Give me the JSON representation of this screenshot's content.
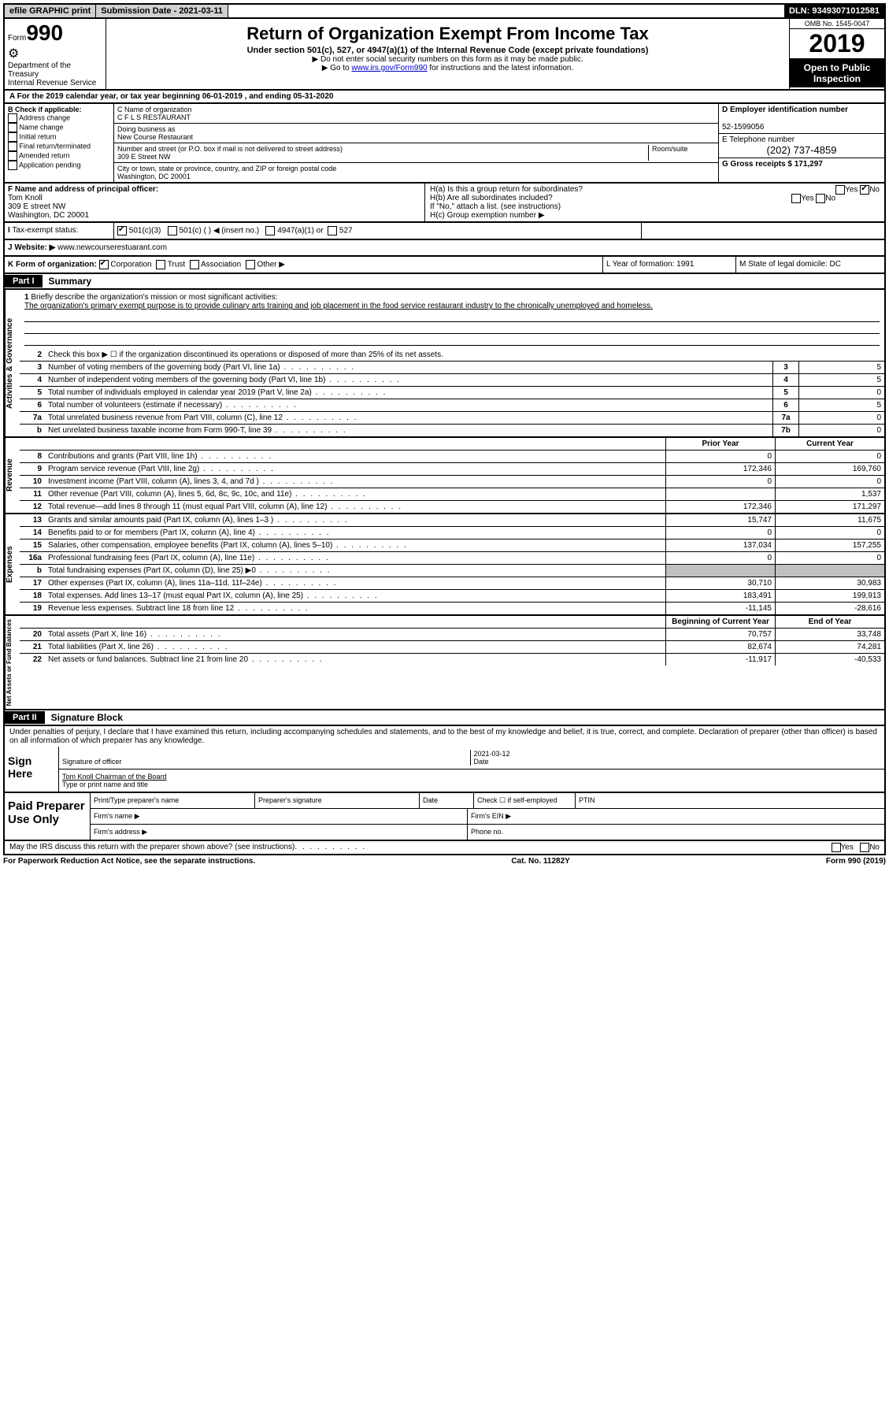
{
  "header": {
    "efile": "efile GRAPHIC print",
    "submission": "Submission Date - 2021-03-11",
    "dln": "DLN: 93493071012581"
  },
  "form": {
    "form_label": "Form",
    "form_num": "990",
    "title": "Return of Organization Exempt From Income Tax",
    "subtitle": "Under section 501(c), 527, or 4947(a)(1) of the Internal Revenue Code (except private foundations)",
    "note1": "Do not enter social security numbers on this form as it may be made public.",
    "note2_pre": "Go to ",
    "note2_link": "www.irs.gov/Form990",
    "note2_post": " for instructions and the latest information.",
    "dept": "Department of the Treasury",
    "irs": "Internal Revenue Service",
    "omb": "OMB No. 1545-0047",
    "year": "2019",
    "open": "Open to Public Inspection"
  },
  "rowA": "For the 2019 calendar year, or tax year beginning 06-01-2019     , and ending 05-31-2020",
  "boxB": {
    "label": "B Check if applicable:",
    "opts": [
      "Address change",
      "Name change",
      "Initial return",
      "Final return/terminated",
      "Amended return",
      "Application pending"
    ]
  },
  "boxC": {
    "name_label": "C Name of organization",
    "name": "C F L S RESTAURANT",
    "dba_label": "Doing business as",
    "dba": "New Course Restaurant",
    "addr_label": "Number and street (or P.O. box if mail is not delivered to street address)",
    "room": "Room/suite",
    "addr": "309 E Street NW",
    "city_label": "City or town, state or province, country, and ZIP or foreign postal code",
    "city": "Washington, DC  20001"
  },
  "boxD": {
    "label": "D Employer identification number",
    "ein": "52-1599056"
  },
  "boxE": {
    "label": "E Telephone number",
    "phone": "(202) 737-4859"
  },
  "boxG": {
    "label": "G Gross receipts $ 171,297"
  },
  "boxF": {
    "label": "F Name and address of principal officer:",
    "name": "Tom Knoll",
    "addr1": "309 E street NW",
    "addr2": "Washington, DC  20001"
  },
  "boxH": {
    "ha": "H(a)  Is this a group return for subordinates?",
    "hb": "H(b)  Are all subordinates included?",
    "hb_note": "If \"No,\" attach a list. (see instructions)",
    "hc": "H(c)  Group exemption number ▶",
    "yes": "Yes",
    "no": "No"
  },
  "rowI": {
    "label": "Tax-exempt status:",
    "opt1": "501(c)(3)",
    "opt2": "501(c) (   ) ◀ (insert no.)",
    "opt3": "4947(a)(1) or",
    "opt4": "527"
  },
  "rowJ": {
    "label": "J    Website: ▶",
    "val": "www.newcourserestuarant.com"
  },
  "rowK": {
    "label": "K Form of organization:",
    "corp": "Corporation",
    "trust": "Trust",
    "assoc": "Association",
    "other": "Other ▶",
    "L": "L Year of formation: 1991",
    "M": "M State of legal domicile: DC"
  },
  "part1": {
    "tab": "Part I",
    "title": "Summary"
  },
  "mission": {
    "num": "1",
    "label": "Briefly describe the organization's mission or most significant activities:",
    "text": "The organization's primary exempt purpose is to provide culinary arts training and job placement in the food service restaurant industry to the chronically unemployed and homeless."
  },
  "gov": {
    "section": "Activities & Governance",
    "r2": "Check this box ▶ ☐  if the organization discontinued its operations or disposed of more than 25% of its net assets.",
    "rows": [
      {
        "n": "3",
        "d": "Number of voting members of the governing body (Part VI, line 1a)",
        "b": "3",
        "v": "5"
      },
      {
        "n": "4",
        "d": "Number of independent voting members of the governing body (Part VI, line 1b)",
        "b": "4",
        "v": "5"
      },
      {
        "n": "5",
        "d": "Total number of individuals employed in calendar year 2019 (Part V, line 2a)",
        "b": "5",
        "v": "0"
      },
      {
        "n": "6",
        "d": "Total number of volunteers (estimate if necessary)",
        "b": "6",
        "v": "5"
      },
      {
        "n": "7a",
        "d": "Total unrelated business revenue from Part VIII, column (C), line 12",
        "b": "7a",
        "v": "0"
      },
      {
        "n": "b",
        "d": "Net unrelated business taxable income from Form 990-T, line 39",
        "b": "7b",
        "v": "0"
      }
    ]
  },
  "rev": {
    "section": "Revenue",
    "hdr_prior": "Prior Year",
    "hdr_curr": "Current Year",
    "rows": [
      {
        "n": "8",
        "d": "Contributions and grants (Part VIII, line 1h)",
        "p": "0",
        "c": "0"
      },
      {
        "n": "9",
        "d": "Program service revenue (Part VIII, line 2g)",
        "p": "172,346",
        "c": "169,760"
      },
      {
        "n": "10",
        "d": "Investment income (Part VIII, column (A), lines 3, 4, and 7d )",
        "p": "0",
        "c": "0"
      },
      {
        "n": "11",
        "d": "Other revenue (Part VIII, column (A), lines 5, 6d, 8c, 9c, 10c, and 11e)",
        "p": "",
        "c": "1,537"
      },
      {
        "n": "12",
        "d": "Total revenue—add lines 8 through 11 (must equal Part VIII, column (A), line 12)",
        "p": "172,346",
        "c": "171,297"
      }
    ]
  },
  "exp": {
    "section": "Expenses",
    "rows": [
      {
        "n": "13",
        "d": "Grants and similar amounts paid (Part IX, column (A), lines 1–3 )",
        "p": "15,747",
        "c": "11,675"
      },
      {
        "n": "14",
        "d": "Benefits paid to or for members (Part IX, column (A), line 4)",
        "p": "0",
        "c": "0"
      },
      {
        "n": "15",
        "d": "Salaries, other compensation, employee benefits (Part IX, column (A), lines 5–10)",
        "p": "137,034",
        "c": "157,255"
      },
      {
        "n": "16a",
        "d": "Professional fundraising fees (Part IX, column (A), line 11e)",
        "p": "0",
        "c": "0"
      },
      {
        "n": "b",
        "d": "Total fundraising expenses (Part IX, column (D), line 25) ▶0",
        "p": "gray",
        "c": "gray"
      },
      {
        "n": "17",
        "d": "Other expenses (Part IX, column (A), lines 11a–11d, 11f–24e)",
        "p": "30,710",
        "c": "30,983"
      },
      {
        "n": "18",
        "d": "Total expenses. Add lines 13–17 (must equal Part IX, column (A), line 25)",
        "p": "183,491",
        "c": "199,913"
      },
      {
        "n": "19",
        "d": "Revenue less expenses. Subtract line 18 from line 12",
        "p": "-11,145",
        "c": "-28,616"
      }
    ]
  },
  "net": {
    "section": "Net Assets or Fund Balances",
    "hdr_beg": "Beginning of Current Year",
    "hdr_end": "End of Year",
    "rows": [
      {
        "n": "20",
        "d": "Total assets (Part X, line 16)",
        "p": "70,757",
        "c": "33,748"
      },
      {
        "n": "21",
        "d": "Total liabilities (Part X, line 26)",
        "p": "82,674",
        "c": "74,281"
      },
      {
        "n": "22",
        "d": "Net assets or fund balances. Subtract line 21 from line 20",
        "p": "-11,917",
        "c": "-40,533"
      }
    ]
  },
  "part2": {
    "tab": "Part II",
    "title": "Signature Block",
    "decl": "Under penalties of perjury, I declare that I have examined this return, including accompanying schedules and statements, and to the best of my knowledge and belief, it is true, correct, and complete. Declaration of preparer (other than officer) is based on all information of which preparer has any knowledge."
  },
  "sign": {
    "label": "Sign Here",
    "sig": "Signature of officer",
    "date": "2021-03-12",
    "date_label": "Date",
    "name": "Tom Knoll  Chairman of the Board",
    "name_label": "Type or print name and title"
  },
  "prep": {
    "label": "Paid Preparer Use Only",
    "h1": "Print/Type preparer's name",
    "h2": "Preparer's signature",
    "h3": "Date",
    "h4": "Check ☐ if self-employed",
    "h5": "PTIN",
    "firm": "Firm's name    ▶",
    "ein": "Firm's EIN ▶",
    "addr": "Firm's address ▶",
    "phone": "Phone no."
  },
  "discuss": "May the IRS discuss this return with the preparer shown above? (see instructions)",
  "footer": {
    "l": "For Paperwork Reduction Act Notice, see the separate instructions.",
    "m": "Cat. No. 11282Y",
    "r": "Form 990 (2019)"
  }
}
